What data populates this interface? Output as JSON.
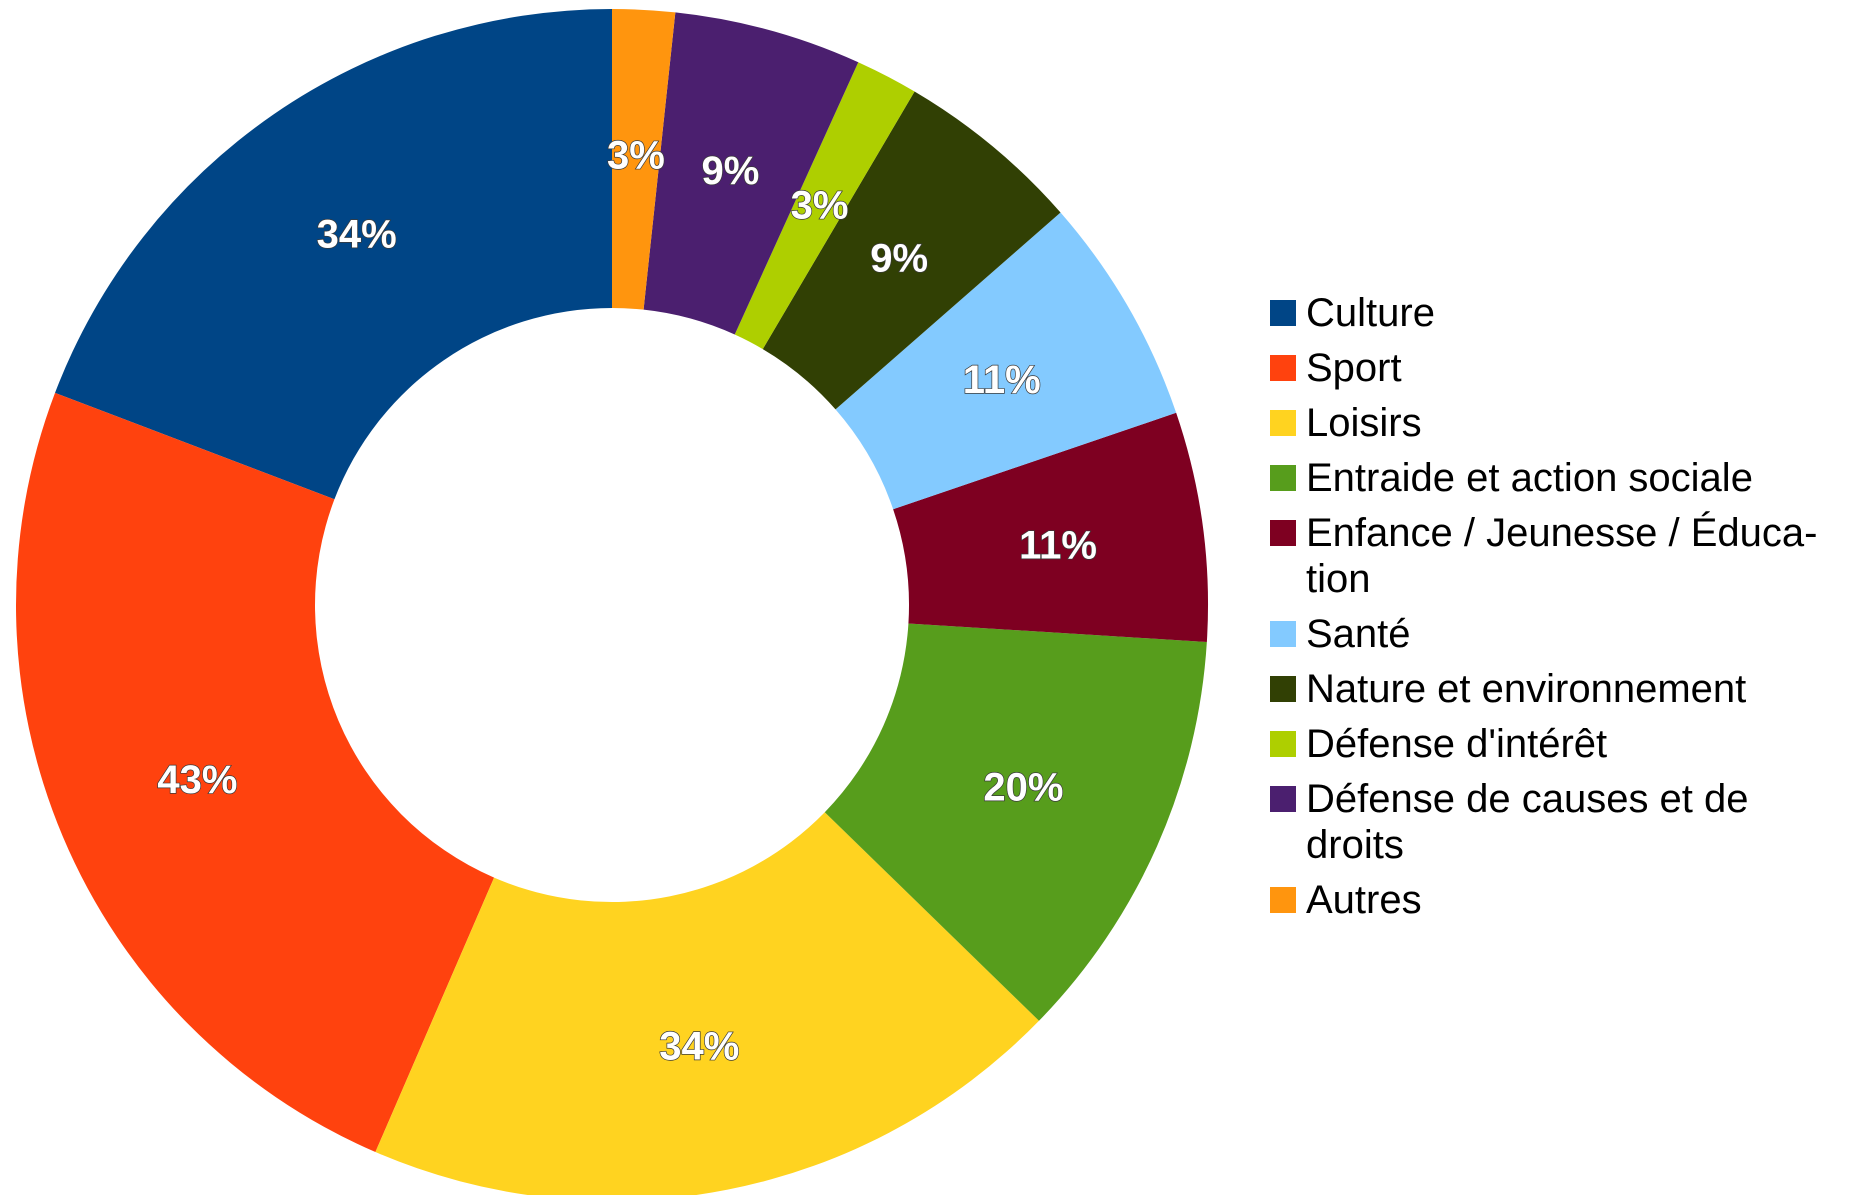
{
  "chart_data": {
    "type": "pie",
    "donut": true,
    "legend_position": "right",
    "percent_basis": "number of responses (multiple choice)",
    "series": [
      {
        "name": "Culture",
        "value": 34,
        "label": "34%",
        "color": "#004586"
      },
      {
        "name": "Sport",
        "value": 43,
        "label": "43%",
        "color": "#ff420e"
      },
      {
        "name": "Loisirs",
        "value": 34,
        "label": "34%",
        "color": "#ffd320"
      },
      {
        "name": "Entraide et action sociale",
        "value": 20,
        "label": "20%",
        "color": "#579d1c"
      },
      {
        "name": "Enfance / Jeunesse / Éducation",
        "value": 11,
        "label": "11%",
        "color": "#7e0021"
      },
      {
        "name": "Santé",
        "value": 11,
        "label": "11%",
        "color": "#83caff"
      },
      {
        "name": "Nature et environnement",
        "value": 9,
        "label": "9%",
        "color": "#314004"
      },
      {
        "name": "Défense d'intérêt",
        "value": 3,
        "label": "3%",
        "color": "#aecf00"
      },
      {
        "name": "Défense de causes et de droits",
        "value": 9,
        "label": "9%",
        "color": "#4b1f6f"
      },
      {
        "name": "Autres",
        "value": 3,
        "label": "3%",
        "color": "#ff950e"
      }
    ]
  },
  "legend": {
    "items": [
      {
        "label_line1": "Culture",
        "label_line2": ""
      },
      {
        "label_line1": "Sport",
        "label_line2": ""
      },
      {
        "label_line1": "Loisirs",
        "label_line2": ""
      },
      {
        "label_line1": "Entraide et action sociale",
        "label_line2": ""
      },
      {
        "label_line1": "Enfance / Jeunesse / Éduca-",
        "label_line2": "tion"
      },
      {
        "label_line1": "Santé",
        "label_line2": ""
      },
      {
        "label_line1": "Nature et environnement",
        "label_line2": ""
      },
      {
        "label_line1": "Défense d'intérêt",
        "label_line2": ""
      },
      {
        "label_line1": "Défense de causes et de",
        "label_line2": "droits"
      },
      {
        "label_line1": "Autres",
        "label_line2": ""
      }
    ]
  }
}
